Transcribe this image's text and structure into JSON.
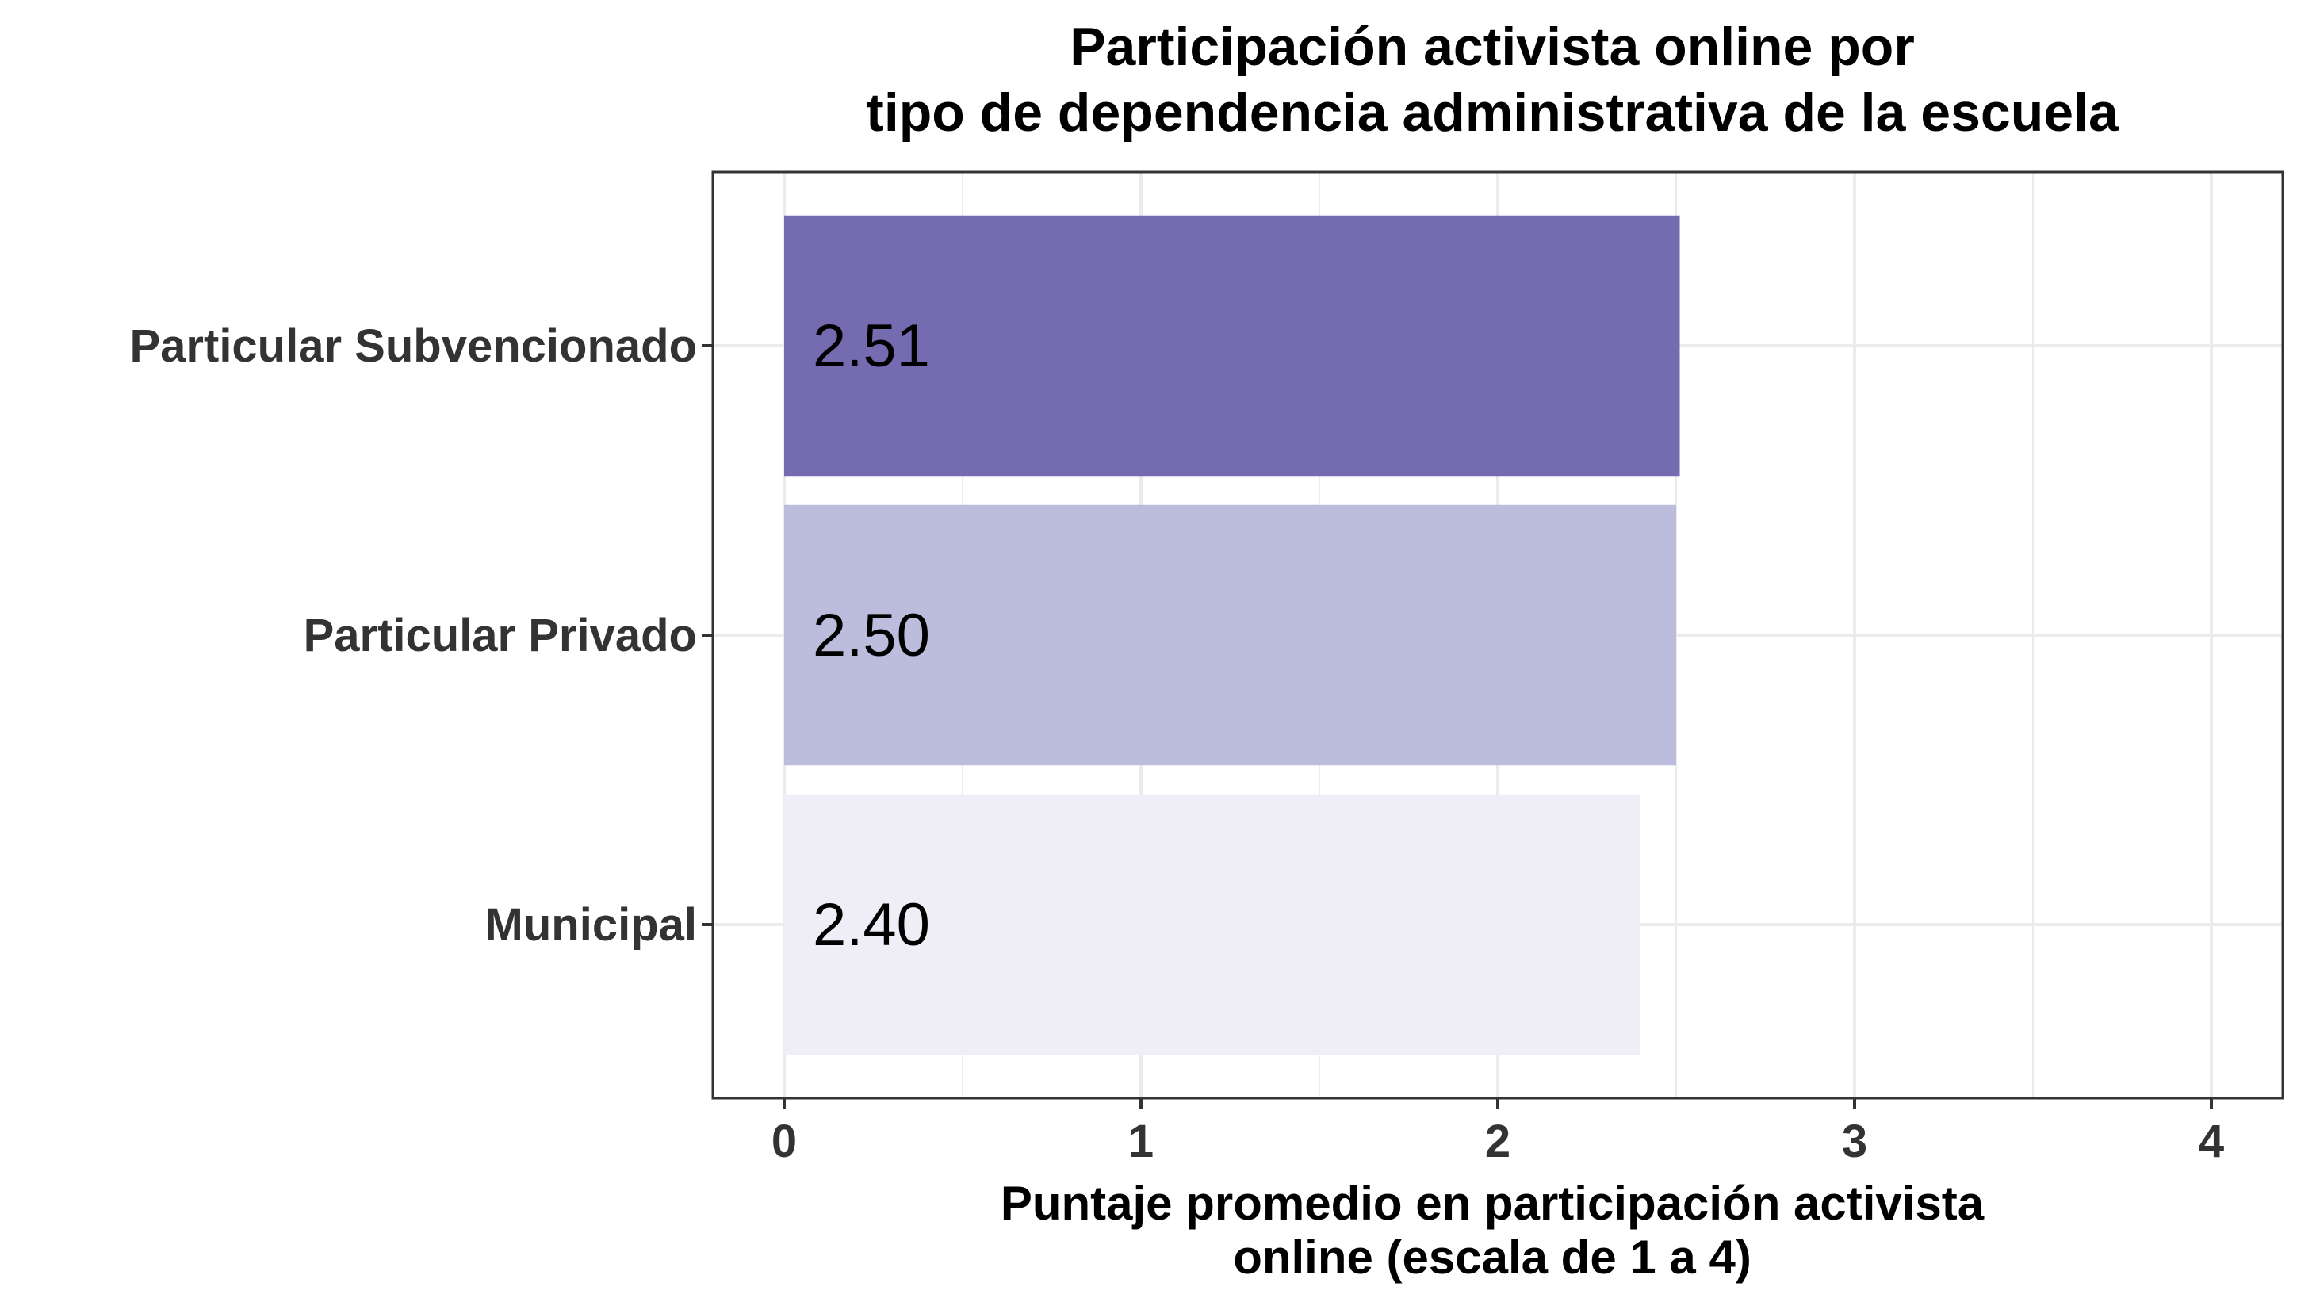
{
  "chart_data": {
    "type": "bar",
    "orientation": "horizontal",
    "title": [
      "Participación activista online por",
      "tipo de dependencia administrativa de la escuela"
    ],
    "xlabel": [
      "Puntaje promedio en participación activista",
      "online (escala de 1 a 4)"
    ],
    "ylabel": "",
    "categories": [
      "Particular Subvencionado",
      "Particular Privado",
      "Municipal"
    ],
    "values": [
      2.51,
      2.5,
      2.4
    ],
    "value_labels": [
      "2.51",
      "2.50",
      "2.40"
    ],
    "colors": [
      "#756bb1",
      "#bcbddc",
      "#efedf5"
    ],
    "xlim": [
      -0.2,
      4.2
    ],
    "xticks": [
      0,
      1,
      2,
      3,
      4
    ],
    "xtick_labels": [
      "0",
      "1",
      "2",
      "3",
      "4"
    ],
    "grid": true,
    "legend": "none"
  }
}
